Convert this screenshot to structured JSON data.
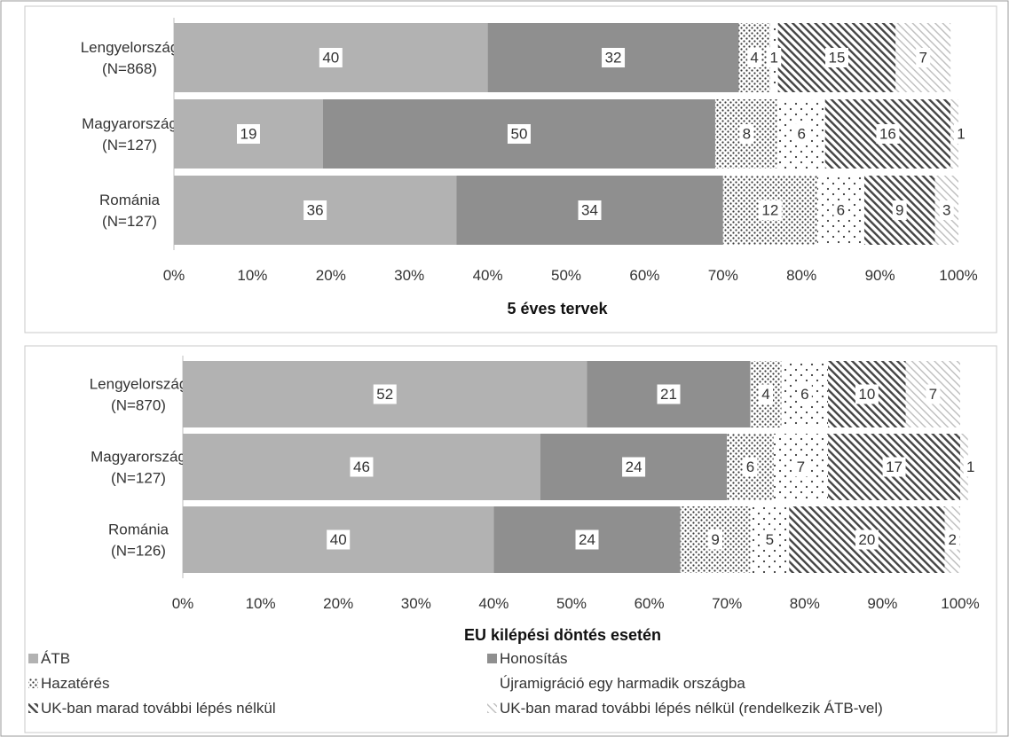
{
  "colors": {
    "atb": "#b2b2b2",
    "honositas": "#8f8f8f",
    "pattern_ink": "#3a3a3a",
    "light_pattern_ink": "#bdbdbd",
    "frame": "#9a9a9a"
  },
  "legend": [
    {
      "key": "atb",
      "label": "ÁTB",
      "pattern": "solid-light"
    },
    {
      "key": "honositas",
      "label": "Honosítás",
      "pattern": "solid-dark"
    },
    {
      "key": "hazateres",
      "label": "Hazatérés",
      "pattern": "dots-dense"
    },
    {
      "key": "ujramigracio",
      "label": "Újramigráció egy harmadik országba",
      "pattern": "dots-sparse"
    },
    {
      "key": "uk_marad",
      "label": "UK-ban marad további lépés nélkül",
      "pattern": "hatch-dark"
    },
    {
      "key": "uk_marad_atb",
      "label": "UK-ban marad további lépés nélkül (rendelkezik ÁTB-vel)",
      "pattern": "hatch-light"
    }
  ],
  "chart_data": [
    {
      "type": "bar",
      "orientation": "horizontal-stacked-100",
      "title": "5 éves tervek",
      "xlim": [
        0,
        100
      ],
      "xticks": [
        "0%",
        "10%",
        "20%",
        "30%",
        "40%",
        "50%",
        "60%",
        "70%",
        "80%",
        "90%",
        "100%"
      ],
      "categories": [
        {
          "name": "Lengyelország",
          "n": "(N=868)"
        },
        {
          "name": "Magyarország",
          "n": "(N=127)"
        },
        {
          "name": "Románia",
          "n": "(N=127)"
        }
      ],
      "series": [
        {
          "key": "atb",
          "values": [
            40,
            19,
            36
          ]
        },
        {
          "key": "honositas",
          "values": [
            32,
            50,
            34
          ]
        },
        {
          "key": "hazateres",
          "values": [
            4,
            8,
            12
          ]
        },
        {
          "key": "ujramigracio",
          "values": [
            1,
            6,
            6
          ]
        },
        {
          "key": "uk_marad",
          "values": [
            15,
            16,
            9
          ]
        },
        {
          "key": "uk_marad_atb",
          "values": [
            7,
            1,
            3
          ]
        }
      ]
    },
    {
      "type": "bar",
      "orientation": "horizontal-stacked-100",
      "title": "EU kilépési döntés esetén",
      "xlim": [
        0,
        100
      ],
      "xticks": [
        "0%",
        "10%",
        "20%",
        "30%",
        "40%",
        "50%",
        "60%",
        "70%",
        "80%",
        "90%",
        "100%"
      ],
      "categories": [
        {
          "name": "Lengyelország",
          "n": "(N=870)"
        },
        {
          "name": "Magyarország",
          "n": "(N=127)"
        },
        {
          "name": "Románia",
          "n": "(N=126)"
        }
      ],
      "series": [
        {
          "key": "atb",
          "values": [
            52,
            46,
            40
          ]
        },
        {
          "key": "honositas",
          "values": [
            21,
            24,
            24
          ]
        },
        {
          "key": "hazateres",
          "values": [
            4,
            6,
            9
          ]
        },
        {
          "key": "ujramigracio",
          "values": [
            6,
            7,
            5
          ]
        },
        {
          "key": "uk_marad",
          "values": [
            10,
            17,
            20
          ]
        },
        {
          "key": "uk_marad_atb",
          "values": [
            7,
            1,
            2
          ]
        }
      ]
    }
  ]
}
